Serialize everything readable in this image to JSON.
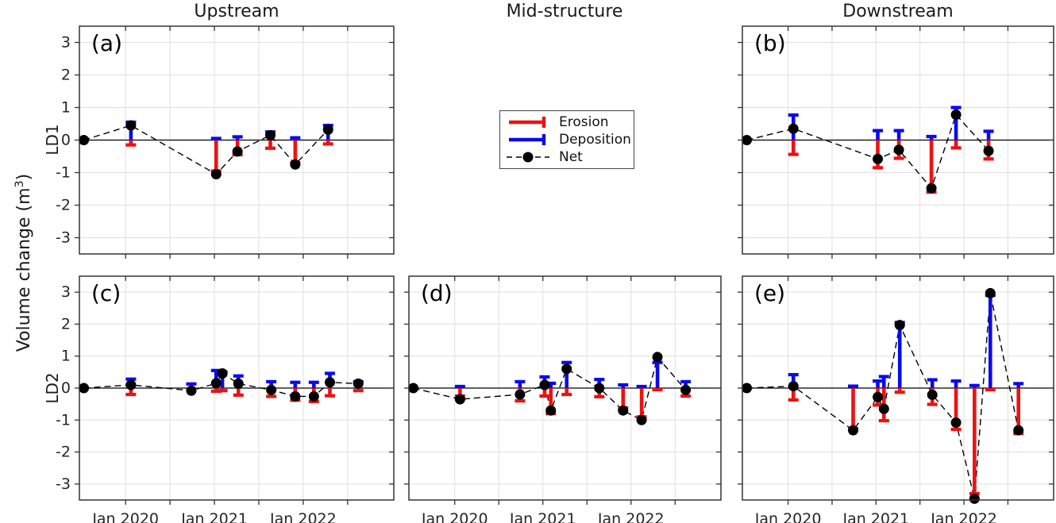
{
  "figure": {
    "column_titles": {
      "upstream": "Upstream",
      "mid": "Mid-structure",
      "downstream": "Downstream"
    },
    "row_labels": {
      "top": "LD1",
      "bottom": "LD2"
    },
    "ylabel_prefix": "Volume change (m",
    "ylabel_sup": "3",
    "ylabel_suffix": ")"
  },
  "legend": {
    "items": [
      {
        "label": "Erosion",
        "symbol": "erosion-bar"
      },
      {
        "label": "Deposition",
        "symbol": "deposition-bar"
      },
      {
        "label": "Net",
        "symbol": "net-dashed-marker"
      }
    ]
  },
  "colors": {
    "erosion": "#ee1111",
    "deposition": "#0a0aee",
    "net": "#000000",
    "grid": "#e0e0e0",
    "axis": "#333333",
    "tick_label": "#262626"
  },
  "chart_data": [
    {
      "type": "line",
      "letter": "(a)",
      "row": "LD1",
      "col": "Upstream",
      "x": [
        2019.53,
        2020.06,
        2021.02,
        2021.26,
        2021.63,
        2021.91,
        2022.28
      ],
      "series": [
        {
          "name": "Net",
          "values": [
            0,
            0.45,
            -1.05,
            -0.35,
            0.15,
            -0.75,
            0.32
          ]
        },
        {
          "name": "Deposition",
          "values": [
            0,
            0.55,
            0.05,
            0.1,
            0.25,
            0.07,
            0.45
          ]
        },
        {
          "name": "Erosion",
          "values": [
            0,
            -0.15,
            -0.95,
            -0.45,
            -0.25,
            -0.7,
            -0.12
          ]
        }
      ],
      "xlim": [
        2019.48,
        2023.02
      ],
      "ylim": [
        -3.5,
        3.5
      ],
      "xticks": [
        2020,
        2020.5,
        2021,
        2021.5,
        2022,
        2022.5
      ],
      "xtick_labels": [
        "Jan 2020",
        "",
        "Jan 2021",
        "",
        "Jan 2022",
        ""
      ],
      "yticks": [
        -3,
        -2,
        -1,
        0,
        1,
        2,
        3
      ],
      "grid": true,
      "ylabel": "Volume change (m3)"
    },
    {
      "type": "line",
      "letter": "(b)",
      "row": "LD1",
      "col": "Downstream",
      "x": [
        2019.53,
        2020.06,
        2021.02,
        2021.26,
        2021.63,
        2021.91,
        2022.28
      ],
      "series": [
        {
          "name": "Net",
          "values": [
            0,
            0.35,
            -0.58,
            -0.3,
            -1.48,
            0.78,
            -0.33
          ]
        },
        {
          "name": "Deposition",
          "values": [
            0,
            0.77,
            0.29,
            0.29,
            0.11,
            1.0,
            0.27
          ]
        },
        {
          "name": "Erosion",
          "values": [
            0,
            -0.44,
            -0.85,
            -0.56,
            -1.6,
            -0.24,
            -0.58
          ]
        }
      ],
      "xlim": [
        2019.48,
        2023.02
      ],
      "ylim": [
        -3.5,
        3.5
      ],
      "xticks": [
        2020,
        2020.5,
        2021,
        2021.5,
        2022,
        2022.5
      ],
      "xtick_labels": [
        "Jan 2020",
        "",
        "Jan 2021",
        "",
        "Jan 2022",
        ""
      ],
      "yticks": [
        -3,
        -2,
        -1,
        0,
        1,
        2,
        3
      ],
      "grid": true
    },
    {
      "type": "line",
      "letter": "(c)",
      "row": "LD2",
      "col": "Upstream",
      "x": [
        2019.53,
        2020.06,
        2020.74,
        2021.02,
        2021.09,
        2021.27,
        2021.64,
        2021.91,
        2022.12,
        2022.3,
        2022.62
      ],
      "series": [
        {
          "name": "Net",
          "values": [
            0,
            0.1,
            -0.08,
            0.15,
            0.46,
            0.14,
            -0.06,
            -0.26,
            -0.26,
            0.18,
            0.14
          ]
        },
        {
          "name": "Deposition",
          "values": [
            0,
            0.28,
            0.13,
            0.55,
            0.5,
            0.38,
            0.2,
            0.18,
            0.18,
            0.46,
            0.2
          ]
        },
        {
          "name": "Erosion",
          "values": [
            0,
            -0.2,
            -0.05,
            -0.1,
            -0.08,
            -0.22,
            -0.26,
            -0.38,
            -0.42,
            -0.24,
            -0.08
          ]
        }
      ],
      "xlim": [
        2019.48,
        2023.02
      ],
      "ylim": [
        -3.5,
        3.5
      ],
      "xticks": [
        2020,
        2020.5,
        2021,
        2021.5,
        2022,
        2022.5
      ],
      "xtick_labels": [
        "Jan 2020",
        "",
        "Jan 2021",
        "",
        "Jan 2022",
        ""
      ],
      "yticks": [
        -3,
        -2,
        -1,
        0,
        1,
        2,
        3
      ],
      "grid": true
    },
    {
      "type": "line",
      "letter": "(d)",
      "row": "LD2",
      "col": "Mid-structure",
      "x": [
        2019.53,
        2020.06,
        2020.74,
        2021.02,
        2021.09,
        2021.27,
        2021.64,
        2021.91,
        2022.12,
        2022.3,
        2022.62
      ],
      "series": [
        {
          "name": "Net",
          "values": [
            0,
            -0.35,
            -0.2,
            0.1,
            -0.7,
            0.6,
            0.0,
            -0.7,
            -1.0,
            0.97,
            -0.06
          ]
        },
        {
          "name": "Deposition",
          "values": [
            0,
            0.05,
            0.2,
            0.35,
            0.15,
            0.8,
            0.27,
            0.1,
            0.05,
            0.8,
            0.2
          ]
        },
        {
          "name": "Erosion",
          "values": [
            0,
            -0.25,
            -0.4,
            -0.25,
            -0.8,
            -0.2,
            -0.27,
            -0.62,
            -0.9,
            -0.05,
            -0.25
          ]
        }
      ],
      "xlim": [
        2019.48,
        2023.02
      ],
      "ylim": [
        -3.5,
        3.5
      ],
      "xticks": [
        2020,
        2020.5,
        2021,
        2021.5,
        2022,
        2022.5
      ],
      "xtick_labels": [
        "Jan 2020",
        "",
        "Jan 2021",
        "",
        "Jan 2022",
        ""
      ],
      "yticks": [
        -3,
        -2,
        -1,
        0,
        1,
        2,
        3
      ],
      "grid": true
    },
    {
      "type": "line",
      "letter": "(e)",
      "row": "LD2",
      "col": "Downstream",
      "x": [
        2019.53,
        2020.06,
        2020.74,
        2021.02,
        2021.09,
        2021.27,
        2021.64,
        2021.91,
        2022.12,
        2022.3,
        2022.62
      ],
      "series": [
        {
          "name": "Net",
          "values": [
            0,
            0.06,
            -1.32,
            -0.28,
            -0.65,
            1.97,
            -0.21,
            -1.08,
            -3.46,
            2.97,
            -1.32
          ]
        },
        {
          "name": "Deposition",
          "values": [
            0,
            0.42,
            0.06,
            0.22,
            0.36,
            2.05,
            0.26,
            0.22,
            0.08,
            2.9,
            0.14
          ]
        },
        {
          "name": "Erosion",
          "values": [
            0,
            -0.37,
            -1.27,
            -0.53,
            -1.02,
            -0.13,
            -0.51,
            -1.29,
            -3.3,
            -0.05,
            -1.42
          ]
        }
      ],
      "xlim": [
        2019.48,
        2023.02
      ],
      "ylim": [
        -3.5,
        3.5
      ],
      "xticks": [
        2020,
        2020.5,
        2021,
        2021.5,
        2022,
        2022.5
      ],
      "xtick_labels": [
        "Jan 2020",
        "",
        "Jan 2021",
        "",
        "Jan 2022",
        ""
      ],
      "yticks": [
        -3,
        -2,
        -1,
        0,
        1,
        2,
        3
      ],
      "grid": true
    }
  ]
}
